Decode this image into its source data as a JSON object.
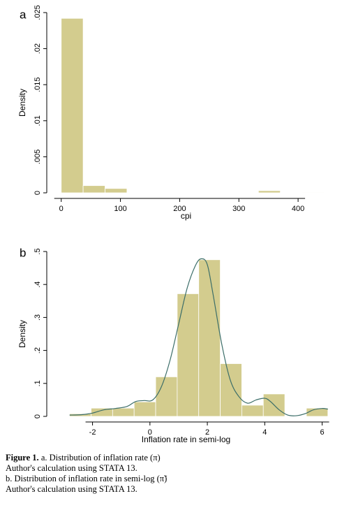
{
  "chart_data": [
    {
      "type": "bar",
      "panel_label": "a",
      "xlabel": "cpi",
      "ylabel": "Density",
      "xlim": [
        -15,
        460
      ],
      "ylim": [
        0,
        0.025
      ],
      "xticks": [
        0,
        100,
        200,
        300,
        400
      ],
      "yticks": [
        0,
        0.005,
        0.01,
        0.015,
        0.02,
        0.025
      ],
      "ytick_labels": [
        "0",
        ".005",
        ".01",
        ".015",
        ".02",
        ".025"
      ],
      "bins": [
        {
          "x0": 0,
          "x1": 37,
          "density": 0.0242
        },
        {
          "x0": 37,
          "x1": 74,
          "density": 0.001
        },
        {
          "x0": 74,
          "x1": 111,
          "density": 0.0006
        },
        {
          "x0": 111,
          "x1": 148,
          "density": 5e-05
        },
        {
          "x0": 148,
          "x1": 185,
          "density": 3e-05
        },
        {
          "x0": 185,
          "x1": 222,
          "density": 3e-05
        },
        {
          "x0": 222,
          "x1": 259,
          "density": 3e-05
        },
        {
          "x0": 259,
          "x1": 296,
          "density": 3e-05
        },
        {
          "x0": 296,
          "x1": 333,
          "density": 3e-05
        },
        {
          "x0": 333,
          "x1": 370,
          "density": 0.0003
        },
        {
          "x0": 370,
          "x1": 407,
          "density": 5e-05
        },
        {
          "x0": 407,
          "x1": 444,
          "density": 8e-05
        }
      ]
    },
    {
      "type": "bar",
      "panel_label": "b",
      "xlabel": "Inflation rate in semi-log",
      "ylabel": "Density",
      "xlim": [
        -3.4,
        6.4
      ],
      "ylim": [
        0,
        0.5
      ],
      "xticks": [
        -2,
        0,
        2,
        4,
        6
      ],
      "yticks": [
        0,
        0.1,
        0.2,
        0.3,
        0.4,
        0.5
      ],
      "ytick_labels": [
        "0",
        ".1",
        ".2",
        ".3",
        ".4",
        ".5"
      ],
      "bins": [
        {
          "x0": -2.8,
          "x1": -2.05,
          "density": 0.008
        },
        {
          "x0": -2.05,
          "x1": -1.3,
          "density": 0.025
        },
        {
          "x0": -1.3,
          "x1": -0.55,
          "density": 0.025
        },
        {
          "x0": -0.55,
          "x1": 0.2,
          "density": 0.044
        },
        {
          "x0": 0.2,
          "x1": 0.95,
          "density": 0.12
        },
        {
          "x0": 0.95,
          "x1": 1.7,
          "density": 0.372
        },
        {
          "x0": 1.7,
          "x1": 2.45,
          "density": 0.475
        },
        {
          "x0": 2.45,
          "x1": 3.2,
          "density": 0.16
        },
        {
          "x0": 3.2,
          "x1": 3.95,
          "density": 0.034
        },
        {
          "x0": 3.95,
          "x1": 4.7,
          "density": 0.068
        },
        {
          "x0": 4.7,
          "x1": 5.45,
          "density": 0
        },
        {
          "x0": 5.45,
          "x1": 6.2,
          "density": 0.025
        }
      ],
      "kde": {
        "x": [
          -2.8,
          -2.4,
          -2.0,
          -1.6,
          -1.2,
          -0.8,
          -0.5,
          -0.2,
          0.1,
          0.4,
          0.7,
          1.0,
          1.3,
          1.6,
          1.8,
          2.0,
          2.2,
          2.5,
          2.8,
          3.1,
          3.4,
          3.7,
          4.0,
          4.2,
          4.5,
          4.8,
          5.1,
          5.4,
          5.7,
          6.0,
          6.2
        ],
        "y": [
          0.004,
          0.005,
          0.01,
          0.02,
          0.024,
          0.03,
          0.045,
          0.048,
          0.05,
          0.09,
          0.17,
          0.28,
          0.39,
          0.46,
          0.478,
          0.46,
          0.37,
          0.22,
          0.11,
          0.06,
          0.04,
          0.05,
          0.055,
          0.045,
          0.02,
          0.004,
          0.002,
          0.008,
          0.02,
          0.024,
          0.022
        ]
      }
    }
  ],
  "caption": {
    "figure_label": "Figure 1.",
    "line1_text": " a. Distribution of inflation rate (π)",
    "line2": "Author's calculation using STATA 13.",
    "line3": "b. Distribution of inflation rate in semi-log (π̃)",
    "line4": "Author's calculation using STATA 13."
  }
}
